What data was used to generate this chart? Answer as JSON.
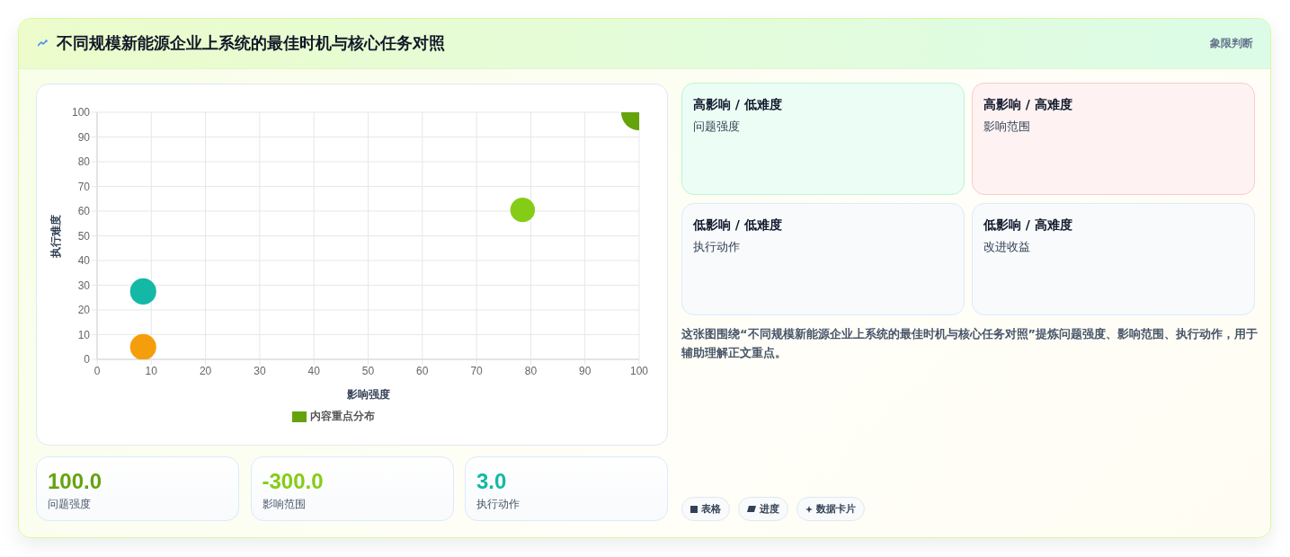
{
  "chart_data": [
    {
      "type": "bubble",
      "title": "不同规模新能源企业上系统的最佳时机与核心任务对照",
      "xlabel": "影响强度",
      "ylabel": "执行难度",
      "x": [
        100,
        78.5,
        8.5,
        8.5
      ],
      "series": [
        {
          "name": "内容重点分布",
          "colors": [
            "#65a30d",
            "#84cc16",
            "#14b8a6",
            "#f59e0b"
          ],
          "values": [
            100,
            60.5,
            27.5,
            5
          ],
          "sizes": [
            1,
            0.47,
            0.53,
            0.53
          ]
        }
      ],
      "xlim": [
        0,
        100
      ],
      "ylim": [
        0,
        100
      ],
      "xticks": [
        0,
        10,
        20,
        30,
        40,
        50,
        60,
        70,
        80,
        90,
        100
      ],
      "yticks": [
        0,
        10,
        20,
        30,
        40,
        50,
        60,
        70,
        80,
        90,
        100
      ],
      "grid": true,
      "legend": "bottom",
      "annotations": [
        "100.0",
        "问题强度",
        "-300.0",
        "影响范围",
        "3.0",
        "执行动作"
      ]
    },
    {
      "type": "other",
      "title": "象限判断",
      "annotations": [
        "高影响 / 低难度",
        "问题强度",
        "高影响 / 高难度",
        "影响范围",
        "低影响 / 低难度",
        "执行动作",
        "低影响 / 高难度",
        "改进收益",
        "这张图围绕“不同规模新能源企业上系统的最佳时机与核心任务对照”提炼问题强度、影响范围、执行动作，用于辅助理解正文重点。",
        "表格",
        "进度",
        "数据卡片"
      ]
    }
  ]
}
